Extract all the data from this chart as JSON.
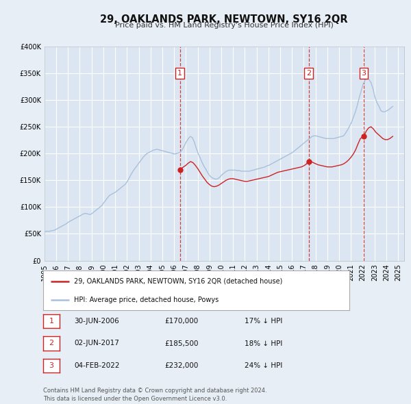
{
  "title": "29, OAKLANDS PARK, NEWTOWN, SY16 2QR",
  "subtitle": "Price paid vs. HM Land Registry's House Price Index (HPI)",
  "bg_color": "#e8eef5",
  "plot_bg_color": "#dce6f2",
  "grid_color": "#ffffff",
  "hpi_color": "#a8c0dc",
  "price_color": "#cc2222",
  "ylim": [
    0,
    400000
  ],
  "yticks": [
    0,
    50000,
    100000,
    150000,
    200000,
    250000,
    300000,
    350000,
    400000
  ],
  "ytick_labels": [
    "£0",
    "£50K",
    "£100K",
    "£150K",
    "£200K",
    "£250K",
    "£300K",
    "£350K",
    "£400K"
  ],
  "xlim_start": 1995.0,
  "xlim_end": 2025.5,
  "xtick_years": [
    1995,
    1996,
    1997,
    1998,
    1999,
    2000,
    2001,
    2002,
    2003,
    2004,
    2005,
    2006,
    2007,
    2008,
    2009,
    2010,
    2011,
    2012,
    2013,
    2014,
    2015,
    2016,
    2017,
    2018,
    2019,
    2020,
    2021,
    2022,
    2023,
    2024,
    2025
  ],
  "sale_dates": [
    2006.497,
    2017.415,
    2022.088
  ],
  "sale_prices": [
    170000,
    185500,
    232000
  ],
  "sale_labels": [
    "1",
    "2",
    "3"
  ],
  "legend_line1": "29, OAKLANDS PARK, NEWTOWN, SY16 2QR (detached house)",
  "legend_line2": "HPI: Average price, detached house, Powys",
  "table_rows": [
    [
      "1",
      "30-JUN-2006",
      "£170,000",
      "17% ↓ HPI"
    ],
    [
      "2",
      "02-JUN-2017",
      "£185,500",
      "18% ↓ HPI"
    ],
    [
      "3",
      "04-FEB-2022",
      "£232,000",
      "24% ↓ HPI"
    ]
  ],
  "footer": "Contains HM Land Registry data © Crown copyright and database right 2024.\nThis data is licensed under the Open Government Licence v3.0.",
  "hpi_years": [
    1995.04,
    1995.21,
    1995.38,
    1995.54,
    1995.71,
    1995.88,
    1996.04,
    1996.21,
    1996.38,
    1996.54,
    1996.71,
    1996.88,
    1997.04,
    1997.21,
    1997.38,
    1997.54,
    1997.71,
    1997.88,
    1998.04,
    1998.21,
    1998.38,
    1998.54,
    1998.71,
    1998.88,
    1999.04,
    1999.21,
    1999.38,
    1999.54,
    1999.71,
    1999.88,
    2000.04,
    2000.21,
    2000.38,
    2000.54,
    2000.71,
    2000.88,
    2001.04,
    2001.21,
    2001.38,
    2001.54,
    2001.71,
    2001.88,
    2002.04,
    2002.21,
    2002.38,
    2002.54,
    2002.71,
    2002.88,
    2003.04,
    2003.21,
    2003.38,
    2003.54,
    2003.71,
    2003.88,
    2004.04,
    2004.21,
    2004.38,
    2004.54,
    2004.71,
    2004.88,
    2005.04,
    2005.21,
    2005.38,
    2005.54,
    2005.71,
    2005.88,
    2006.04,
    2006.21,
    2006.38,
    2006.54,
    2006.71,
    2006.88,
    2007.04,
    2007.21,
    2007.38,
    2007.54,
    2007.71,
    2007.88,
    2008.04,
    2008.21,
    2008.38,
    2008.54,
    2008.71,
    2008.88,
    2009.04,
    2009.21,
    2009.38,
    2009.54,
    2009.71,
    2009.88,
    2010.04,
    2010.21,
    2010.38,
    2010.54,
    2010.71,
    2010.88,
    2011.04,
    2011.21,
    2011.38,
    2011.54,
    2011.71,
    2011.88,
    2012.04,
    2012.21,
    2012.38,
    2012.54,
    2012.71,
    2012.88,
    2013.04,
    2013.21,
    2013.38,
    2013.54,
    2013.71,
    2013.88,
    2014.04,
    2014.21,
    2014.38,
    2014.54,
    2014.71,
    2014.88,
    2015.04,
    2015.21,
    2015.38,
    2015.54,
    2015.71,
    2015.88,
    2016.04,
    2016.21,
    2016.38,
    2016.54,
    2016.71,
    2016.88,
    2017.04,
    2017.21,
    2017.38,
    2017.54,
    2017.71,
    2017.88,
    2018.04,
    2018.21,
    2018.38,
    2018.54,
    2018.71,
    2018.88,
    2019.04,
    2019.21,
    2019.38,
    2019.54,
    2019.71,
    2019.88,
    2020.04,
    2020.21,
    2020.38,
    2020.54,
    2020.71,
    2020.88,
    2021.04,
    2021.21,
    2021.38,
    2021.54,
    2021.71,
    2021.88,
    2022.04,
    2022.21,
    2022.38,
    2022.54,
    2022.71,
    2022.88,
    2023.04,
    2023.21,
    2023.38,
    2023.54,
    2023.71,
    2023.88,
    2024.04,
    2024.21,
    2024.38,
    2024.54
  ],
  "hpi_values": [
    54000,
    55000,
    54500,
    55500,
    56000,
    57000,
    59000,
    61000,
    63000,
    65000,
    67000,
    69000,
    72000,
    74000,
    76000,
    78000,
    80000,
    82000,
    84000,
    86000,
    88000,
    88000,
    87000,
    86000,
    88000,
    91000,
    94000,
    97000,
    100000,
    103000,
    108000,
    113000,
    118000,
    122000,
    124000,
    126000,
    128000,
    131000,
    134000,
    137000,
    140000,
    143000,
    148000,
    155000,
    162000,
    168000,
    173000,
    178000,
    183000,
    188000,
    193000,
    197000,
    200000,
    202000,
    204000,
    206000,
    207000,
    208000,
    207000,
    206000,
    205000,
    204000,
    203000,
    202000,
    201000,
    200000,
    199000,
    200000,
    201000,
    203000,
    208000,
    215000,
    222000,
    228000,
    232000,
    230000,
    222000,
    210000,
    200000,
    192000,
    183000,
    176000,
    170000,
    163000,
    158000,
    155000,
    153000,
    152000,
    153000,
    156000,
    160000,
    163000,
    166000,
    168000,
    169000,
    169000,
    169000,
    169000,
    168000,
    168000,
    167000,
    167000,
    167000,
    167000,
    167000,
    168000,
    169000,
    170000,
    171000,
    172000,
    173000,
    174000,
    175000,
    177000,
    178000,
    180000,
    182000,
    184000,
    186000,
    188000,
    190000,
    192000,
    194000,
    196000,
    198000,
    200000,
    202000,
    205000,
    208000,
    211000,
    214000,
    217000,
    220000,
    223000,
    226000,
    229000,
    232000,
    233000,
    233000,
    232000,
    231000,
    230000,
    229000,
    228000,
    228000,
    228000,
    228000,
    228000,
    229000,
    230000,
    231000,
    232000,
    233000,
    238000,
    244000,
    251000,
    258000,
    268000,
    278000,
    290000,
    305000,
    318000,
    330000,
    338000,
    340000,
    338000,
    332000,
    320000,
    305000,
    295000,
    288000,
    280000,
    278000,
    278000,
    280000,
    282000,
    285000,
    288000
  ],
  "price_years": [
    2006.497,
    2006.6,
    2006.8,
    2007.0,
    2007.2,
    2007.4,
    2007.6,
    2007.8,
    2008.0,
    2008.2,
    2008.4,
    2008.6,
    2008.8,
    2009.0,
    2009.2,
    2009.4,
    2009.6,
    2009.8,
    2010.0,
    2010.2,
    2010.4,
    2010.6,
    2010.8,
    2011.0,
    2011.2,
    2011.4,
    2011.6,
    2011.8,
    2012.0,
    2012.2,
    2012.4,
    2012.6,
    2012.8,
    2013.0,
    2013.2,
    2013.4,
    2013.6,
    2013.8,
    2014.0,
    2014.2,
    2014.4,
    2014.6,
    2014.8,
    2015.0,
    2015.2,
    2015.4,
    2015.6,
    2015.8,
    2016.0,
    2016.2,
    2016.4,
    2016.6,
    2016.8,
    2017.0,
    2017.2,
    2017.415,
    2017.6,
    2017.8,
    2018.0,
    2018.2,
    2018.4,
    2018.6,
    2018.8,
    2019.0,
    2019.2,
    2019.4,
    2019.6,
    2019.8,
    2020.0,
    2020.2,
    2020.4,
    2020.6,
    2020.8,
    2021.0,
    2021.2,
    2021.4,
    2021.6,
    2021.8,
    2022.088,
    2022.3,
    2022.5,
    2022.7,
    2022.9,
    2023.1,
    2023.3,
    2023.5,
    2023.7,
    2023.9,
    2024.1,
    2024.3,
    2024.54
  ],
  "price_values": [
    170000,
    172000,
    175000,
    178000,
    182000,
    185000,
    183000,
    178000,
    172000,
    165000,
    158000,
    152000,
    146000,
    142000,
    139000,
    138000,
    139000,
    141000,
    144000,
    147000,
    150000,
    152000,
    153000,
    153000,
    152000,
    151000,
    150000,
    149000,
    148000,
    148000,
    149000,
    150000,
    151000,
    152000,
    153000,
    154000,
    155000,
    156000,
    157000,
    159000,
    161000,
    163000,
    165000,
    166000,
    167000,
    168000,
    169000,
    170000,
    171000,
    172000,
    173000,
    174000,
    175000,
    177000,
    180000,
    185500,
    185000,
    183000,
    181000,
    179000,
    178000,
    177000,
    176000,
    175000,
    175000,
    175000,
    176000,
    177000,
    178000,
    179000,
    181000,
    184000,
    188000,
    193000,
    199000,
    207000,
    218000,
    228000,
    232000,
    242000,
    248000,
    250000,
    246000,
    240000,
    236000,
    232000,
    228000,
    226000,
    226000,
    228000,
    232000
  ]
}
